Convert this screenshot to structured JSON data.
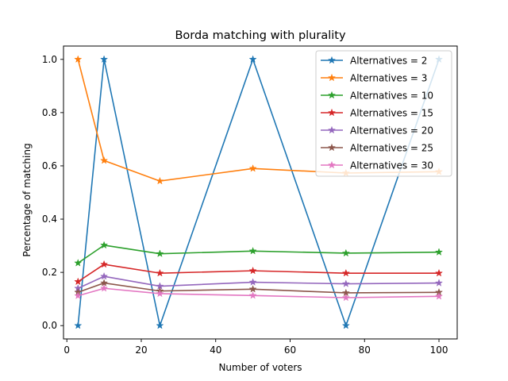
{
  "chart_data": {
    "type": "line",
    "title": "Borda matching with plurality",
    "xlabel": "Number of voters",
    "ylabel": "Percentage of matching",
    "xlim": [
      -0.9,
      104.9
    ],
    "ylim": [
      -0.05,
      1.05
    ],
    "xticks": [
      0,
      20,
      40,
      60,
      80,
      100
    ],
    "yticks": [
      0.0,
      0.2,
      0.4,
      0.6,
      0.8,
      1.0
    ],
    "xtick_labels": [
      "0",
      "20",
      "40",
      "60",
      "80",
      "100"
    ],
    "ytick_labels": [
      "0.0",
      "0.2",
      "0.4",
      "0.6",
      "0.8",
      "1.0"
    ],
    "grid": false,
    "legend_position": "top-right",
    "marker": "star",
    "x": [
      3,
      10,
      25,
      50,
      75,
      100
    ],
    "series": [
      {
        "name": "Alternatives = 2",
        "color": "#1f77b4",
        "values": [
          0.0,
          1.0,
          0.0,
          1.0,
          0.0,
          1.0
        ]
      },
      {
        "name": "Alternatives = 3",
        "color": "#ff7f0e",
        "values": [
          1.0,
          0.62,
          0.543,
          0.59,
          0.573,
          0.578
        ]
      },
      {
        "name": "Alternatives = 10",
        "color": "#2ca02c",
        "values": [
          0.235,
          0.302,
          0.27,
          0.28,
          0.272,
          0.276
        ]
      },
      {
        "name": "Alternatives = 15",
        "color": "#d62728",
        "values": [
          0.165,
          0.23,
          0.197,
          0.206,
          0.197,
          0.197
        ]
      },
      {
        "name": "Alternatives = 20",
        "color": "#9467bd",
        "values": [
          0.14,
          0.185,
          0.148,
          0.163,
          0.157,
          0.16
        ]
      },
      {
        "name": "Alternatives = 25",
        "color": "#8c564b",
        "values": [
          0.125,
          0.16,
          0.13,
          0.137,
          0.123,
          0.125
        ]
      },
      {
        "name": "Alternatives = 30",
        "color": "#e377c2",
        "values": [
          0.112,
          0.14,
          0.12,
          0.113,
          0.105,
          0.11
        ]
      }
    ]
  }
}
